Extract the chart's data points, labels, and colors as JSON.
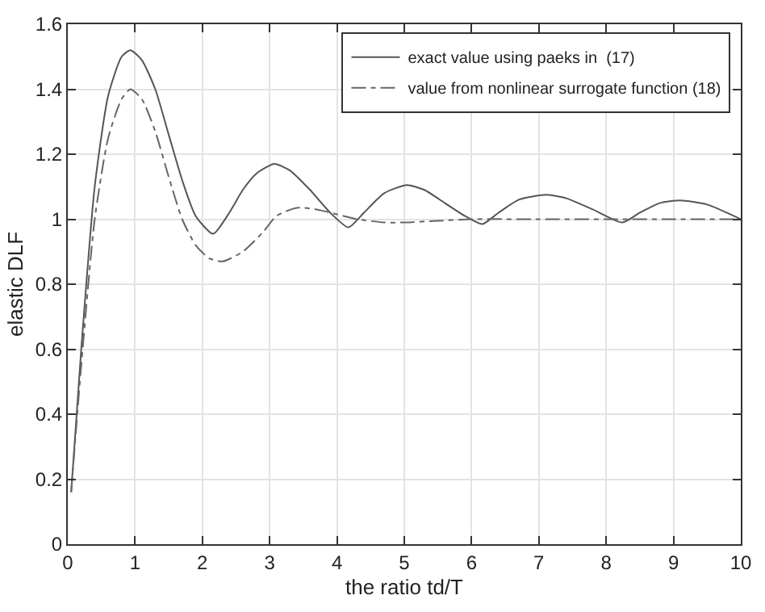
{
  "chart_data": {
    "type": "line",
    "xlabel": "the ratio td/T",
    "ylabel": "elastic DLF",
    "xlim": [
      0,
      10
    ],
    "ylim": [
      0,
      1.6
    ],
    "xticks": [
      0,
      1,
      2,
      3,
      4,
      5,
      6,
      7,
      8,
      9,
      10
    ],
    "yticks": [
      0,
      0.2,
      0.4,
      0.6,
      0.8,
      1,
      1.2,
      1.4,
      1.6
    ],
    "grid": true,
    "legend": "top right",
    "series": [
      {
        "name": "exact value using paeks in  (17)",
        "color": "#555555",
        "line_style": "solid",
        "x": [
          0.05,
          0.2,
          0.4,
          0.6,
          0.8,
          0.93,
          1.1,
          1.3,
          1.5,
          1.7,
          1.9,
          2.16,
          2.4,
          2.6,
          2.8,
          3.07,
          3.3,
          3.6,
          3.9,
          4.17,
          4.4,
          4.7,
          5.04,
          5.3,
          5.6,
          5.9,
          6.16,
          6.4,
          6.7,
          7.1,
          7.4,
          7.8,
          8.24,
          8.5,
          8.8,
          9.1,
          9.5,
          10
        ],
        "values": [
          0.16,
          0.6,
          1.1,
          1.38,
          1.5,
          1.52,
          1.49,
          1.4,
          1.26,
          1.12,
          1.01,
          0.955,
          1.02,
          1.09,
          1.14,
          1.17,
          1.15,
          1.09,
          1.02,
          0.975,
          1.02,
          1.08,
          1.105,
          1.09,
          1.05,
          1.01,
          0.985,
          1.02,
          1.06,
          1.075,
          1.065,
          1.03,
          0.99,
          1.02,
          1.05,
          1.058,
          1.045,
          1.0
        ]
      },
      {
        "name": "value from nonlinear surrogate function (18)",
        "color": "#666666",
        "line_style": "dashdot",
        "x": [
          0.05,
          0.2,
          0.4,
          0.6,
          0.8,
          0.93,
          1.1,
          1.3,
          1.5,
          1.7,
          1.9,
          2.1,
          2.3,
          2.6,
          2.9,
          3.1,
          3.4,
          3.7,
          4.0,
          4.3,
          4.7,
          5.0,
          5.5,
          6.0,
          7.0,
          8.0,
          9.0,
          10
        ],
        "values": [
          0.16,
          0.55,
          1.0,
          1.25,
          1.37,
          1.4,
          1.37,
          1.27,
          1.13,
          1.0,
          0.92,
          0.88,
          0.87,
          0.9,
          0.96,
          1.01,
          1.035,
          1.03,
          1.015,
          1.0,
          0.99,
          0.99,
          0.995,
          1.0,
          1.0,
          1.0,
          1.0,
          1.0
        ]
      }
    ]
  }
}
